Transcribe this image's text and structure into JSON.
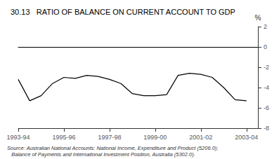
{
  "chart_data": {
    "type": "line",
    "title": "30.13   RATIO OF BALANCE ON CURRENT ACCOUNT TO GDP",
    "ylabel": "%",
    "annotations": [
      "Source: Australian National Accounts: National Income, Expenditure and Product (5206.0);",
      "   Balance of Payments and International Investment Position, Australia (5302.0)."
    ],
    "x": [
      1993.5,
      1994.0,
      1994.5,
      1995.0,
      1995.5,
      1996.0,
      1996.5,
      1997.0,
      1997.5,
      1998.0,
      1998.5,
      1999.0,
      1999.5,
      2000.0,
      2000.5,
      2001.0,
      2001.5,
      2002.0,
      2002.5,
      2003.0,
      2003.5
    ],
    "values": [
      -3.2,
      -5.3,
      -4.8,
      -3.6,
      -3.0,
      -3.1,
      -2.8,
      -2.9,
      -3.2,
      -3.6,
      -4.6,
      -4.8,
      -4.8,
      -4.7,
      -2.8,
      -2.6,
      -2.7,
      -3.0,
      -4.0,
      -5.2,
      -5.3
    ],
    "color": "#000000",
    "xlim": [
      1993.5,
      2004.0
    ],
    "xticks": [
      {
        "value": 1993.5,
        "label": "1993-94"
      },
      {
        "value": 1995.5,
        "label": "1995-96"
      },
      {
        "value": 1997.5,
        "label": "1997-98"
      },
      {
        "value": 1999.5,
        "label": "1999-00"
      },
      {
        "value": 2001.5,
        "label": "2001-02"
      },
      {
        "value": 2003.5,
        "label": "2003-04"
      }
    ],
    "ylim": [
      -8,
      2
    ],
    "yticks": [
      -8,
      -6,
      -4,
      -2,
      0,
      2
    ],
    "grid": false
  }
}
